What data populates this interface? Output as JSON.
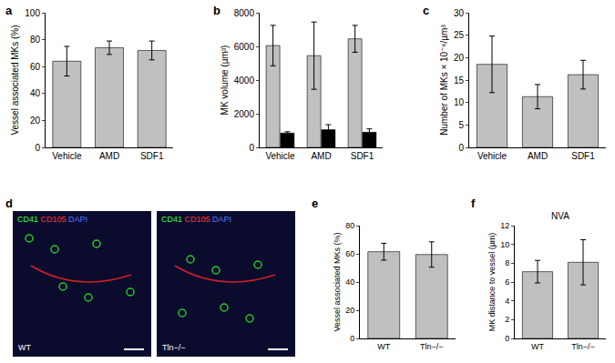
{
  "chart_data": [
    {
      "type": "bar",
      "panel_label": "a",
      "y_label": "Vessel associated MKs (%)",
      "categories": [
        "Vehicle",
        "AMD",
        "SDF1"
      ],
      "series": [
        {
          "color": "#c0c0c0",
          "values": [
            64,
            74,
            72
          ],
          "errors": [
            11,
            5,
            7
          ]
        }
      ],
      "ylim": [
        0,
        100
      ],
      "yticks": [
        0,
        20,
        40,
        60,
        80,
        100
      ],
      "grid": false
    },
    {
      "type": "bar",
      "panel_label": "b",
      "y_label": "MK volume (µm³)",
      "categories": [
        "Vehicle",
        "AMD",
        "SDF1"
      ],
      "series": [
        {
          "color": "#c0c0c0",
          "values": [
            6050,
            5450,
            6450
          ],
          "errors": [
            1200,
            2000,
            800
          ]
        },
        {
          "color": "#000000",
          "values": [
            850,
            1050,
            900
          ],
          "errors": [
            80,
            300,
            200
          ]
        }
      ],
      "ylim": [
        0,
        8000
      ],
      "yticks": [
        0,
        2000,
        4000,
        6000,
        8000
      ],
      "grid": false
    },
    {
      "type": "bar",
      "panel_label": "c",
      "y_label": "Number of MKs × 10⁻⁶/µm³",
      "categories": [
        "Vehicle",
        "AMD",
        "SDF1"
      ],
      "series": [
        {
          "color": "#c0c0c0",
          "values": [
            18.5,
            11.3,
            16.2
          ],
          "errors": [
            6.3,
            2.7,
            3.2
          ]
        }
      ],
      "ylim": [
        0,
        30
      ],
      "yticks": [
        0,
        5,
        10,
        15,
        20,
        25,
        30
      ],
      "grid": false
    },
    {
      "type": "bar",
      "panel_label": "e",
      "y_label": "Vessel associated MKs (%)",
      "categories": [
        "WT",
        "Tln−/−"
      ],
      "series": [
        {
          "color": "#c0c0c0",
          "values": [
            61.5,
            59.5
          ],
          "errors": [
            6,
            9
          ]
        }
      ],
      "ylim": [
        0,
        80
      ],
      "yticks": [
        0,
        20,
        40,
        60,
        80
      ],
      "grid": false
    },
    {
      "type": "bar",
      "panel_label": "f",
      "title": "NVA",
      "y_label": "MK distance to vessel (µm)",
      "categories": [
        "WT",
        "Tln−/−"
      ],
      "series": [
        {
          "color": "#c0c0c0",
          "values": [
            7.1,
            8.1
          ],
          "errors": [
            1.2,
            2.4
          ]
        }
      ],
      "ylim": [
        0,
        12
      ],
      "yticks": [
        0,
        2,
        4,
        6,
        8,
        10,
        12
      ],
      "grid": false
    }
  ],
  "image_panel": {
    "panel_label": "d",
    "images": [
      {
        "channels": [
          {
            "text": "CD41",
            "color": "#33ff33"
          },
          {
            "text": "CD105",
            "color": "#ff3333"
          },
          {
            "text": "DAPI",
            "color": "#5577ff"
          }
        ],
        "caption": "WT"
      },
      {
        "channels": [
          {
            "text": "CD41",
            "color": "#33ff33"
          },
          {
            "text": "CD105",
            "color": "#ff3333"
          },
          {
            "text": "DAPI",
            "color": "#5577ff"
          }
        ],
        "caption": "Tln−/−"
      }
    ]
  }
}
